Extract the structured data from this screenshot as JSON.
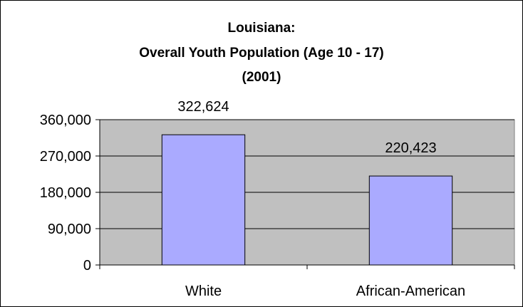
{
  "chart_data": {
    "type": "bar",
    "title_lines": [
      "Louisiana:",
      "Overall Youth Population (Age 10 - 17)",
      "(2001)"
    ],
    "categories": [
      "White",
      "African-American"
    ],
    "values": [
      322624,
      220423
    ],
    "data_labels": [
      "322,624",
      "220,423"
    ],
    "xlabel": "",
    "ylabel": "",
    "ylim": [
      0,
      360000
    ],
    "yticks": [
      0,
      90000,
      180000,
      270000,
      360000
    ],
    "ytick_labels": [
      "0",
      "90,000",
      "180,000",
      "270,000",
      "360,000"
    ],
    "grid": true,
    "legend": "none",
    "colors": {
      "bar_fill": "#aaaaff",
      "bar_stroke": "#000000",
      "plot_background": "#c0c0c0",
      "gridline": "#000000"
    }
  }
}
